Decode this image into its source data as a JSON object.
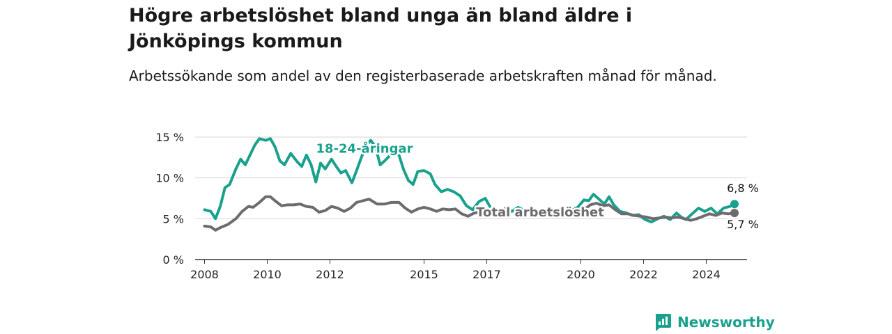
{
  "header": {
    "title": "Högre arbetslöshet bland unga än bland äldre i Jönköpings kommun",
    "subtitle": "Arbetssökande som andel av den registerbaserade arbetskraften månad för månad."
  },
  "brand": {
    "name": "Newsworthy",
    "icon": "newsworthy-logo-icon"
  },
  "colors": {
    "youth": "#1aa18d",
    "total": "#6e6b70",
    "grid": "#d6d6d6",
    "axis": "#333333"
  },
  "chart_data": {
    "type": "line",
    "title": "Högre arbetslöshet bland unga än bland äldre i Jönköpings kommun",
    "subtitle": "Arbetssökande som andel av den registerbaserade arbetskraften månad för månad.",
    "xlabel": "",
    "ylabel": "",
    "ylim": [
      0,
      15
    ],
    "yticks": [
      0,
      5,
      10,
      15
    ],
    "ytick_labels": [
      "0 %",
      "5 %",
      "10 %",
      "15 %"
    ],
    "xticks": [
      2008,
      2010,
      2012,
      2015,
      2017,
      2020,
      2022,
      2024
    ],
    "xtick_labels": [
      "2008",
      "2010",
      "2012",
      "2015",
      "2017",
      "2020",
      "2022",
      "2024"
    ],
    "xlim": [
      2007.7,
      2025.3
    ],
    "grid": true,
    "legend": "inline labels",
    "series": [
      {
        "name": "18-24-åringar",
        "color": "#1aa18d",
        "points": [
          [
            2008.0,
            6.1
          ],
          [
            2008.2,
            5.9
          ],
          [
            2008.35,
            5.0
          ],
          [
            2008.5,
            6.5
          ],
          [
            2008.65,
            8.8
          ],
          [
            2008.8,
            9.2
          ],
          [
            2009.0,
            11.1
          ],
          [
            2009.15,
            12.3
          ],
          [
            2009.3,
            11.6
          ],
          [
            2009.45,
            12.8
          ],
          [
            2009.6,
            14.0
          ],
          [
            2009.75,
            14.8
          ],
          [
            2009.95,
            14.6
          ],
          [
            2010.1,
            14.8
          ],
          [
            2010.25,
            13.8
          ],
          [
            2010.4,
            12.1
          ],
          [
            2010.55,
            11.6
          ],
          [
            2010.75,
            13.0
          ],
          [
            2010.95,
            12.0
          ],
          [
            2011.1,
            11.4
          ],
          [
            2011.25,
            12.8
          ],
          [
            2011.4,
            11.6
          ],
          [
            2011.55,
            9.5
          ],
          [
            2011.7,
            11.8
          ],
          [
            2011.85,
            11.1
          ],
          [
            2012.05,
            12.3
          ],
          [
            2012.2,
            11.4
          ],
          [
            2012.35,
            10.6
          ],
          [
            2012.5,
            10.9
          ],
          [
            2012.7,
            9.4
          ],
          [
            2012.85,
            10.9
          ],
          [
            2013.0,
            12.5
          ],
          [
            2013.15,
            13.9
          ],
          [
            2013.3,
            14.6
          ],
          [
            2013.45,
            13.8
          ],
          [
            2013.6,
            11.6
          ],
          [
            2013.75,
            12.1
          ],
          [
            2013.9,
            12.7
          ],
          [
            2014.05,
            13.2
          ],
          [
            2014.2,
            12.8
          ],
          [
            2014.35,
            11.0
          ],
          [
            2014.5,
            9.7
          ],
          [
            2014.65,
            9.2
          ],
          [
            2014.8,
            10.8
          ],
          [
            2015.0,
            10.9
          ],
          [
            2015.2,
            10.5
          ],
          [
            2015.35,
            9.2
          ],
          [
            2015.55,
            8.3
          ],
          [
            2015.75,
            8.6
          ],
          [
            2015.95,
            8.3
          ],
          [
            2016.15,
            7.8
          ],
          [
            2016.35,
            6.6
          ],
          [
            2016.55,
            6.1
          ],
          [
            2016.75,
            7.1
          ],
          [
            2016.95,
            7.5
          ],
          [
            2017.1,
            6.5
          ]
        ]
      },
      {
        "name": "18-24-åringar (fortsättning 1)",
        "color": "#1aa18d",
        "points": [
          [
            2017.6,
            6.3
          ],
          [
            2017.8,
            5.9
          ],
          [
            2018.0,
            6.4
          ],
          [
            2018.2,
            6.0
          ]
        ]
      },
      {
        "name": "18-24-åringar (fortsättning 2)",
        "color": "#1aa18d",
        "points": [
          [
            2019.7,
            6.0
          ],
          [
            2019.9,
            6.4
          ],
          [
            2020.1,
            7.3
          ],
          [
            2020.25,
            7.2
          ],
          [
            2020.4,
            8.0
          ],
          [
            2020.55,
            7.5
          ],
          [
            2020.75,
            6.8
          ],
          [
            2020.9,
            7.7
          ],
          [
            2021.05,
            6.7
          ],
          [
            2021.25,
            5.9
          ],
          [
            2021.45,
            5.7
          ],
          [
            2021.65,
            5.4
          ],
          [
            2021.85,
            5.5
          ],
          [
            2022.05,
            4.9
          ],
          [
            2022.25,
            4.6
          ],
          [
            2022.45,
            5.0
          ],
          [
            2022.65,
            5.3
          ],
          [
            2022.85,
            4.9
          ],
          [
            2023.05,
            5.7
          ],
          [
            2023.2,
            5.2
          ],
          [
            2023.35,
            4.9
          ],
          [
            2023.55,
            5.6
          ],
          [
            2023.75,
            6.3
          ],
          [
            2023.95,
            5.9
          ],
          [
            2024.15,
            6.3
          ],
          [
            2024.35,
            5.6
          ],
          [
            2024.55,
            6.3
          ],
          [
            2024.75,
            6.5
          ],
          [
            2024.9,
            6.8
          ]
        ]
      },
      {
        "name": "Total arbetslöshet",
        "color": "#6e6b70",
        "points": [
          [
            2008.0,
            4.1
          ],
          [
            2008.2,
            4.0
          ],
          [
            2008.35,
            3.6
          ],
          [
            2008.5,
            3.9
          ],
          [
            2008.75,
            4.3
          ],
          [
            2009.0,
            5.0
          ],
          [
            2009.2,
            5.9
          ],
          [
            2009.4,
            6.5
          ],
          [
            2009.55,
            6.4
          ],
          [
            2009.75,
            7.0
          ],
          [
            2009.95,
            7.7
          ],
          [
            2010.1,
            7.7
          ],
          [
            2010.25,
            7.2
          ],
          [
            2010.45,
            6.6
          ],
          [
            2010.65,
            6.7
          ],
          [
            2010.85,
            6.7
          ],
          [
            2011.05,
            6.8
          ],
          [
            2011.25,
            6.5
          ],
          [
            2011.45,
            6.4
          ],
          [
            2011.65,
            5.8
          ],
          [
            2011.85,
            6.0
          ],
          [
            2012.05,
            6.5
          ],
          [
            2012.25,
            6.3
          ],
          [
            2012.45,
            5.9
          ],
          [
            2012.65,
            6.3
          ],
          [
            2012.85,
            7.0
          ],
          [
            2013.05,
            7.2
          ],
          [
            2013.25,
            7.4
          ],
          [
            2013.5,
            6.8
          ],
          [
            2013.75,
            6.8
          ],
          [
            2013.95,
            7.0
          ],
          [
            2014.2,
            7.0
          ],
          [
            2014.4,
            6.3
          ],
          [
            2014.6,
            5.8
          ],
          [
            2014.8,
            6.2
          ],
          [
            2015.0,
            6.4
          ],
          [
            2015.2,
            6.2
          ],
          [
            2015.4,
            5.9
          ],
          [
            2015.6,
            6.2
          ],
          [
            2015.8,
            6.1
          ],
          [
            2016.0,
            6.2
          ],
          [
            2016.2,
            5.6
          ],
          [
            2016.4,
            5.3
          ],
          [
            2016.6,
            5.7
          ],
          [
            2016.8,
            5.8
          ]
        ]
      },
      {
        "name": "Total arbetslöshet (fortsättning)",
        "color": "#6e6b70",
        "points": [
          [
            2019.7,
            6.0
          ],
          [
            2019.9,
            6.0
          ],
          [
            2020.1,
            6.1
          ],
          [
            2020.3,
            6.7
          ],
          [
            2020.5,
            6.9
          ],
          [
            2020.7,
            6.6
          ],
          [
            2020.9,
            6.7
          ],
          [
            2021.1,
            6.1
          ],
          [
            2021.3,
            5.6
          ],
          [
            2021.5,
            5.6
          ],
          [
            2021.7,
            5.4
          ],
          [
            2021.9,
            5.3
          ],
          [
            2022.1,
            5.2
          ],
          [
            2022.3,
            5.0
          ],
          [
            2022.5,
            5.1
          ],
          [
            2022.7,
            5.2
          ],
          [
            2022.9,
            5.1
          ],
          [
            2023.1,
            5.2
          ],
          [
            2023.3,
            5.0
          ],
          [
            2023.5,
            4.8
          ],
          [
            2023.7,
            5.0
          ],
          [
            2023.9,
            5.3
          ],
          [
            2024.1,
            5.6
          ],
          [
            2024.3,
            5.4
          ],
          [
            2024.5,
            5.7
          ],
          [
            2024.7,
            5.6
          ],
          [
            2024.9,
            5.7
          ]
        ]
      }
    ],
    "annotations": [
      {
        "text": "18-24-åringar",
        "series": "youth",
        "x": 2013.1,
        "y": 13.1
      },
      {
        "text": "Total arbetslöshet",
        "series": "total",
        "x": 2018.7,
        "y": 5.3
      },
      {
        "text": "6,8 %",
        "series": "youth",
        "x": 2024.9,
        "y": 6.8
      },
      {
        "text": "5,7 %",
        "series": "total",
        "x": 2024.9,
        "y": 5.7
      }
    ]
  }
}
